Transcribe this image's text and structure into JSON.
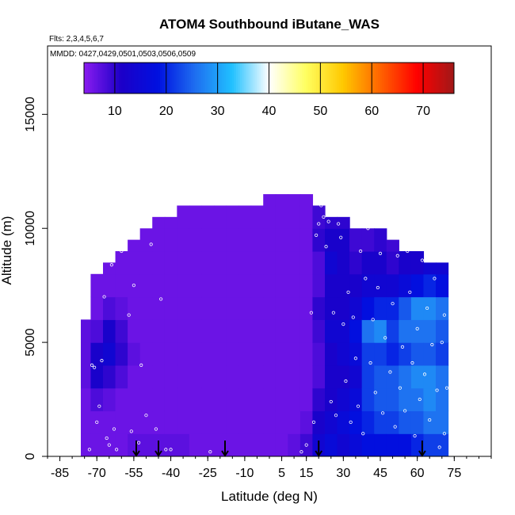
{
  "chart_data": {
    "type": "heatmap",
    "title": "ATOM4 Southbound iButane_WAS",
    "flights_note": "Flts: 2,3,4,5,6,7",
    "dates_note": "MMDD: 0427,0429,0501,0503,0506,0509",
    "xlabel": "Latitude (deg N)",
    "ylabel": "Altitude (m)",
    "xlim": [
      -90,
      90
    ],
    "ylim": [
      0,
      18000
    ],
    "x_ticks": [
      -85,
      -70,
      -55,
      -40,
      -25,
      -10,
      5,
      15,
      30,
      45,
      60,
      75
    ],
    "x_tick_labels": [
      "-85",
      "-70",
      "-55",
      "-40",
      "-25",
      "-10",
      "5",
      "15",
      "30",
      "45",
      "60",
      "75"
    ],
    "y_ticks": [
      0,
      5000,
      10000,
      15000
    ],
    "y_tick_labels": [
      "0",
      "5000",
      "10000",
      "15000"
    ],
    "colorbar": {
      "range": [
        4,
        76
      ],
      "ticks": [
        10,
        20,
        30,
        40,
        50,
        60,
        70
      ],
      "tick_labels": [
        "10",
        "20",
        "30",
        "40",
        "50",
        "60",
        "70"
      ],
      "colors": [
        "#8a1cf0",
        "#1c00c8",
        "#0010e0",
        "#1e6ef0",
        "#20c0ff",
        "#ffffff",
        "#ffff60",
        "#ffc800",
        "#ff6400",
        "#ff0000",
        "#a01818"
      ]
    },
    "profile_markers_lat": [
      -54,
      -45,
      -18,
      20,
      62
    ],
    "columns": [
      {
        "lat": -74,
        "top": 6500,
        "values": [
          6,
          6,
          6,
          7,
          7,
          7
        ]
      },
      {
        "lat": -70,
        "top": 8000,
        "values": [
          6,
          6,
          8,
          12,
          12,
          8,
          6,
          6
        ]
      },
      {
        "lat": -65,
        "top": 8500,
        "values": [
          6,
          6,
          7,
          10,
          14,
          12,
          8,
          6,
          6
        ]
      },
      {
        "lat": -60,
        "top": 9000,
        "values": [
          6,
          6,
          6,
          8,
          10,
          9,
          7,
          6,
          6
        ]
      },
      {
        "lat": -55,
        "top": 9500,
        "values": [
          7,
          6,
          6,
          6,
          7,
          6,
          6,
          6,
          6,
          6
        ]
      },
      {
        "lat": -50,
        "top": 10000,
        "values": [
          7,
          6,
          6,
          6,
          6,
          6,
          6,
          6,
          6,
          6
        ]
      },
      {
        "lat": -45,
        "top": 10500,
        "values": [
          7,
          6,
          6,
          6,
          6,
          6,
          6,
          6,
          6,
          6,
          6
        ]
      },
      {
        "lat": -40,
        "top": 10500,
        "values": [
          7,
          6,
          6,
          6,
          6,
          6,
          6,
          6,
          6,
          6,
          6
        ]
      },
      {
        "lat": -35,
        "top": 11000,
        "values": [
          7,
          6,
          6,
          6,
          6,
          6,
          6,
          6,
          6,
          6,
          6
        ]
      },
      {
        "lat": -30,
        "top": 11000,
        "values": [
          6,
          6,
          6,
          6,
          6,
          6,
          6,
          6,
          6,
          6,
          6
        ]
      },
      {
        "lat": -25,
        "top": 11000,
        "values": [
          6,
          6,
          6,
          6,
          6,
          6,
          6,
          6,
          6,
          6,
          6
        ]
      },
      {
        "lat": -20,
        "top": 11000,
        "values": [
          6,
          6,
          6,
          6,
          6,
          6,
          6,
          6,
          6,
          6,
          6
        ]
      },
      {
        "lat": -15,
        "top": 11000,
        "values": [
          6,
          6,
          6,
          6,
          6,
          6,
          6,
          6,
          6,
          6,
          6
        ]
      },
      {
        "lat": -10,
        "top": 11000,
        "values": [
          6,
          6,
          6,
          6,
          6,
          6,
          6,
          6,
          6,
          6,
          6
        ]
      },
      {
        "lat": -5,
        "top": 11000,
        "values": [
          6,
          6,
          6,
          6,
          6,
          6,
          6,
          6,
          6,
          6,
          6
        ]
      },
      {
        "lat": 0,
        "top": 11500,
        "values": [
          6,
          6,
          6,
          6,
          6,
          6,
          6,
          6,
          6,
          6,
          6,
          6
        ]
      },
      {
        "lat": 5,
        "top": 11500,
        "values": [
          6,
          6,
          6,
          6,
          6,
          6,
          6,
          6,
          6,
          6,
          6,
          6
        ]
      },
      {
        "lat": 10,
        "top": 11500,
        "values": [
          7,
          6,
          6,
          6,
          6,
          6,
          6,
          6,
          6,
          6,
          6,
          6
        ]
      },
      {
        "lat": 15,
        "top": 11500,
        "values": [
          9,
          7,
          6,
          6,
          6,
          6,
          6,
          6,
          6,
          6,
          6,
          6
        ]
      },
      {
        "lat": 20,
        "top": 11000,
        "values": [
          14,
          12,
          10,
          8,
          8,
          9,
          10,
          8,
          8,
          10,
          9
        ]
      },
      {
        "lat": 25,
        "top": 10500,
        "values": [
          16,
          14,
          12,
          12,
          12,
          14,
          12,
          12,
          14,
          12,
          10
        ]
      },
      {
        "lat": 30,
        "top": 10500,
        "values": [
          14,
          16,
          14,
          12,
          14,
          14,
          12,
          12,
          12,
          12,
          10
        ]
      },
      {
        "lat": 35,
        "top": 10000,
        "values": [
          16,
          18,
          16,
          14,
          16,
          18,
          14,
          12,
          10,
          9
        ]
      },
      {
        "lat": 40,
        "top": 10000,
        "values": [
          18,
          20,
          22,
          22,
          22,
          26,
          18,
          14,
          12,
          9
        ]
      },
      {
        "lat": 45,
        "top": 10000,
        "values": [
          18,
          22,
          24,
          24,
          22,
          28,
          20,
          14,
          12,
          10
        ]
      },
      {
        "lat": 50,
        "top": 9500,
        "values": [
          18,
          22,
          24,
          24,
          20,
          22,
          20,
          14,
          10,
          9
        ]
      },
      {
        "lat": 55,
        "top": 9000,
        "values": [
          18,
          24,
          26,
          26,
          22,
          26,
          24,
          16,
          12
        ]
      },
      {
        "lat": 60,
        "top": 9000,
        "values": [
          20,
          24,
          26,
          28,
          24,
          26,
          28,
          18,
          12
        ]
      },
      {
        "lat": 65,
        "top": 8500,
        "values": [
          22,
          26,
          28,
          28,
          24,
          26,
          28,
          20,
          14
        ]
      },
      {
        "lat": 70,
        "top": 8500,
        "values": [
          22,
          26,
          26,
          26,
          22,
          24,
          26,
          18,
          14
        ]
      }
    ],
    "samples": [
      {
        "lat": -73,
        "alt": 300
      },
      {
        "lat": -72,
        "alt": 4000
      },
      {
        "lat": -71,
        "alt": 3900
      },
      {
        "lat": -70,
        "alt": 1500
      },
      {
        "lat": -69,
        "alt": 2200
      },
      {
        "lat": -68,
        "alt": 4200
      },
      {
        "lat": -67,
        "alt": 7000
      },
      {
        "lat": -66,
        "alt": 800
      },
      {
        "lat": -65,
        "alt": 500
      },
      {
        "lat": -64,
        "alt": 8400
      },
      {
        "lat": -63,
        "alt": 1200
      },
      {
        "lat": -62,
        "alt": 300
      },
      {
        "lat": -60,
        "alt": 9000
      },
      {
        "lat": -57,
        "alt": 6200
      },
      {
        "lat": -56,
        "alt": 1100
      },
      {
        "lat": -55,
        "alt": 7500
      },
      {
        "lat": -53,
        "alt": 600
      },
      {
        "lat": -52,
        "alt": 4000
      },
      {
        "lat": -50,
        "alt": 1800
      },
      {
        "lat": -48,
        "alt": 9300
      },
      {
        "lat": -46,
        "alt": 1200
      },
      {
        "lat": -44,
        "alt": 6900
      },
      {
        "lat": -42,
        "alt": 300
      },
      {
        "lat": -40,
        "alt": 300
      },
      {
        "lat": -24,
        "alt": 200
      },
      {
        "lat": 13,
        "alt": 200
      },
      {
        "lat": 15,
        "alt": 500
      },
      {
        "lat": 17,
        "alt": 6300
      },
      {
        "lat": 18,
        "alt": 1500
      },
      {
        "lat": 19,
        "alt": 9700
      },
      {
        "lat": 20,
        "alt": 10200
      },
      {
        "lat": 21,
        "alt": 11000
      },
      {
        "lat": 22,
        "alt": 10500
      },
      {
        "lat": 23,
        "alt": 9200
      },
      {
        "lat": 24,
        "alt": 10300
      },
      {
        "lat": 25,
        "alt": 2400
      },
      {
        "lat": 26,
        "alt": 6300
      },
      {
        "lat": 27,
        "alt": 1800
      },
      {
        "lat": 28,
        "alt": 10200
      },
      {
        "lat": 29,
        "alt": 9600
      },
      {
        "lat": 30,
        "alt": 5800
      },
      {
        "lat": 31,
        "alt": 3300
      },
      {
        "lat": 32,
        "alt": 7200
      },
      {
        "lat": 33,
        "alt": 1500
      },
      {
        "lat": 34,
        "alt": 6100
      },
      {
        "lat": 35,
        "alt": 4300
      },
      {
        "lat": 36,
        "alt": 2200
      },
      {
        "lat": 37,
        "alt": 9000
      },
      {
        "lat": 38,
        "alt": 1000
      },
      {
        "lat": 39,
        "alt": 7800
      },
      {
        "lat": 40,
        "alt": 10000
      },
      {
        "lat": 41,
        "alt": 4100
      },
      {
        "lat": 42,
        "alt": 6000
      },
      {
        "lat": 43,
        "alt": 2800
      },
      {
        "lat": 44,
        "alt": 7400
      },
      {
        "lat": 45,
        "alt": 8900
      },
      {
        "lat": 46,
        "alt": 1900
      },
      {
        "lat": 47,
        "alt": 5200
      },
      {
        "lat": 48,
        "alt": 10100
      },
      {
        "lat": 49,
        "alt": 3700
      },
      {
        "lat": 50,
        "alt": 6700
      },
      {
        "lat": 51,
        "alt": 1300
      },
      {
        "lat": 52,
        "alt": 8800
      },
      {
        "lat": 53,
        "alt": 3000
      },
      {
        "lat": 54,
        "alt": 4800
      },
      {
        "lat": 55,
        "alt": 2000
      },
      {
        "lat": 56,
        "alt": 9000
      },
      {
        "lat": 57,
        "alt": 7200
      },
      {
        "lat": 58,
        "alt": 4100
      },
      {
        "lat": 59,
        "alt": 900
      },
      {
        "lat": 60,
        "alt": 5600
      },
      {
        "lat": 61,
        "alt": 2500
      },
      {
        "lat": 62,
        "alt": 8600
      },
      {
        "lat": 63,
        "alt": 3600
      },
      {
        "lat": 64,
        "alt": 6500
      },
      {
        "lat": 65,
        "alt": 1600
      },
      {
        "lat": 66,
        "alt": 4900
      },
      {
        "lat": 67,
        "alt": 7800
      },
      {
        "lat": 68,
        "alt": 2900
      },
      {
        "lat": 69,
        "alt": 400
      },
      {
        "lat": 70,
        "alt": 5000
      },
      {
        "lat": 71,
        "alt": 6200
      },
      {
        "lat": 71,
        "alt": 1000
      },
      {
        "lat": 72,
        "alt": 3000
      }
    ]
  }
}
